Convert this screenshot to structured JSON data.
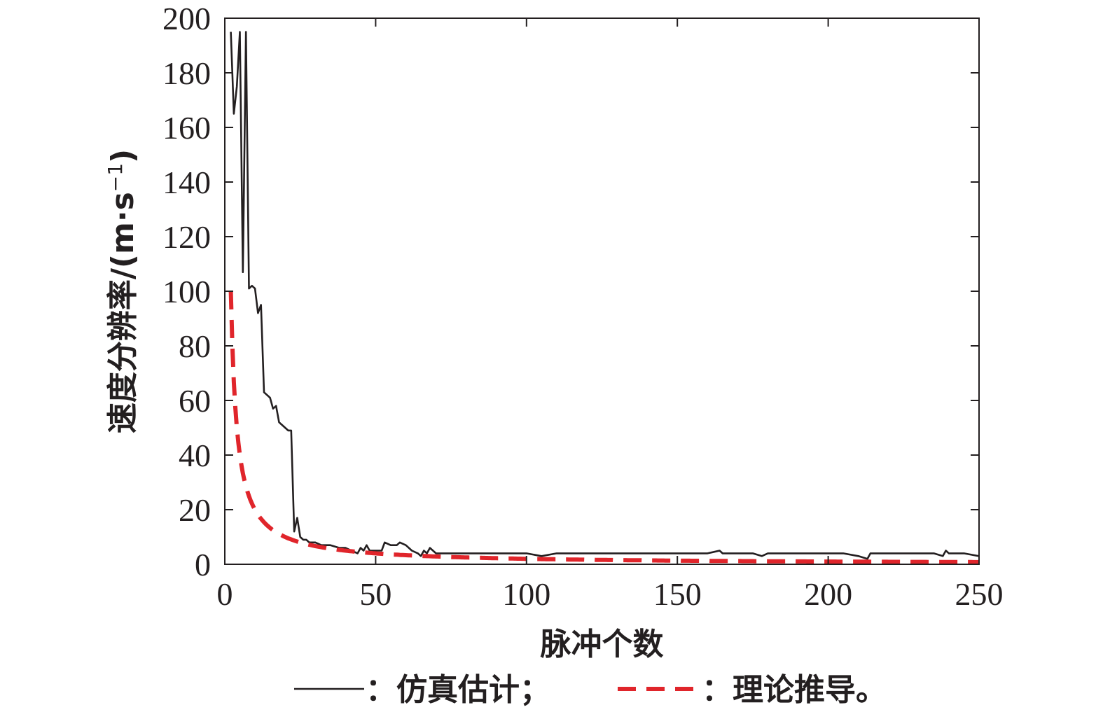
{
  "chart_data": {
    "type": "line",
    "title": "",
    "xlabel": "脉冲个数",
    "ylabel": "速度分辨率/(m·s",
    "ylabel_sup": "−1",
    "ylabel_close": ")",
    "xlim": [
      0,
      250
    ],
    "ylim": [
      0,
      200
    ],
    "xticks": [
      0,
      50,
      100,
      150,
      200,
      250
    ],
    "yticks": [
      0,
      20,
      40,
      60,
      80,
      100,
      120,
      140,
      160,
      180,
      200
    ],
    "grid": false,
    "legend_position": "bottom",
    "colors": {
      "sim": "#231f20",
      "theory": "#e0252b",
      "axis": "#231f20"
    },
    "series": [
      {
        "name": "仿真估计",
        "legend_label": "：仿真估计；",
        "style": "solid",
        "x": [
          2,
          3,
          4,
          5,
          6,
          7,
          8,
          9,
          10,
          11,
          12,
          13,
          14,
          15,
          16,
          17,
          18,
          19,
          20,
          21,
          22,
          23,
          24,
          25,
          26,
          27,
          28,
          30,
          32,
          35,
          38,
          40,
          42,
          44,
          45,
          46,
          47,
          48,
          50,
          52,
          53,
          55,
          57,
          58,
          60,
          62,
          64,
          65,
          66,
          67,
          68,
          70,
          72,
          75,
          78,
          80,
          85,
          90,
          95,
          100,
          105,
          110,
          115,
          120,
          125,
          130,
          135,
          140,
          145,
          150,
          155,
          160,
          164,
          165,
          170,
          175,
          178,
          180,
          185,
          190,
          195,
          200,
          205,
          210,
          213,
          214,
          215,
          220,
          225,
          230,
          235,
          238,
          239,
          240,
          245,
          250
        ],
        "values": [
          195,
          165,
          175,
          195,
          107,
          195,
          101,
          102,
          101,
          92,
          95,
          63,
          62,
          61,
          57,
          58,
          52,
          51,
          50,
          49,
          49,
          12,
          17,
          10,
          9,
          9,
          8,
          8,
          7,
          7,
          6,
          6,
          5,
          4,
          6,
          5,
          7,
          5,
          5,
          5,
          8,
          7,
          7,
          8,
          7,
          5,
          4,
          3,
          5,
          4,
          6,
          4,
          4,
          4,
          4,
          4,
          4,
          4,
          4,
          4,
          3,
          4,
          4,
          4,
          4,
          4,
          4,
          4,
          4,
          4,
          4,
          4,
          5,
          4,
          4,
          4,
          3,
          4,
          4,
          4,
          4,
          4,
          4,
          3,
          2,
          4,
          4,
          4,
          4,
          4,
          4,
          3,
          5,
          4,
          4,
          3
        ]
      },
      {
        "name": "理论推导",
        "legend_label": "：理论推导。",
        "style": "dashed",
        "formula_numerator": 200,
        "x_start": 2,
        "x_end": 250
      }
    ]
  }
}
